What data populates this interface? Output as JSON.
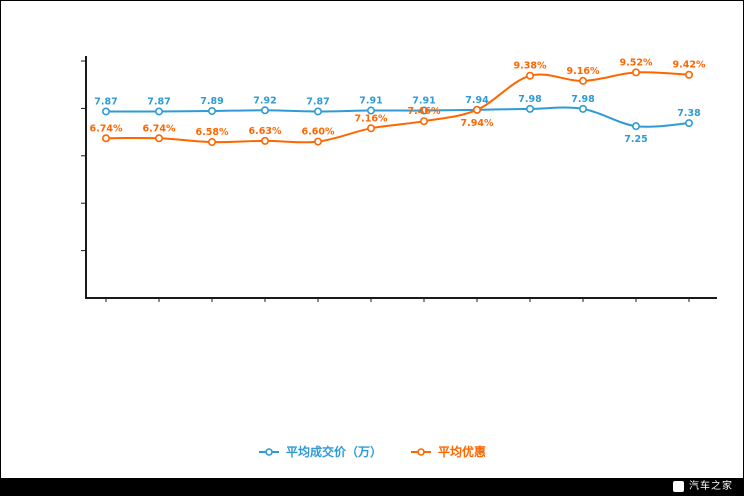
{
  "chart_data": {
    "type": "line",
    "title": "",
    "x": [
      "",
      "",
      "",
      "",
      "",
      "",
      "",
      "",
      "",
      "",
      "",
      ""
    ],
    "series": [
      {
        "name": "平均成交价（万）",
        "color": "#2e9bd6",
        "values": [
          7.87,
          7.87,
          7.89,
          7.92,
          7.87,
          7.91,
          7.91,
          7.94,
          7.98,
          7.98,
          7.25,
          7.38
        ],
        "labels": [
          "7.87",
          "7.87",
          "7.89",
          "7.92",
          "7.87",
          "7.91",
          "7.91",
          "7.94",
          "7.98",
          "7.98",
          "7.25",
          "7.38"
        ],
        "label_below": [
          10
        ]
      },
      {
        "name": "平均优惠",
        "color": "#ff6600",
        "values": [
          6.74,
          6.74,
          6.58,
          6.63,
          6.6,
          7.16,
          7.46,
          7.94,
          9.38,
          9.16,
          9.52,
          9.42
        ],
        "labels": [
          "6.74%",
          "6.74%",
          "6.58%",
          "6.63%",
          "6.60%",
          "7.16%",
          "7.46%",
          "7.94%",
          "9.38%",
          "9.16%",
          "9.52%",
          "9.42%"
        ],
        "label_below": [
          7
        ]
      }
    ],
    "ylim": [
      0,
      10
    ],
    "y_ticks": [
      2,
      4,
      6,
      8,
      10
    ],
    "grid": false,
    "legend_position": "bottom"
  },
  "legend": {
    "items": [
      {
        "label": "平均成交价（万）",
        "color": "#2e9bd6"
      },
      {
        "label": "平均优惠",
        "color": "#ff6600"
      }
    ]
  },
  "footer": {
    "brand": "汽车之家"
  }
}
